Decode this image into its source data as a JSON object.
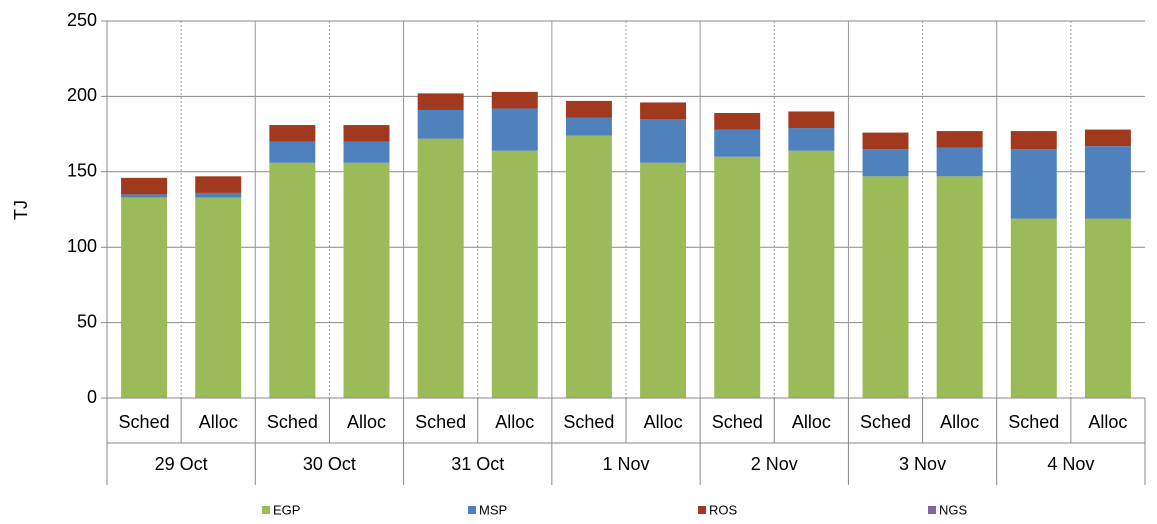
{
  "chart_data": {
    "type": "bar",
    "stacked": true,
    "ylabel": "TJ",
    "categories": [
      "Sched",
      "Alloc",
      "Sched",
      "Alloc",
      "Sched",
      "Alloc",
      "Sched",
      "Alloc",
      "Sched",
      "Alloc",
      "Sched",
      "Alloc",
      "Sched",
      "Alloc"
    ],
    "groups": [
      "29 Oct",
      "30 Oct",
      "31 Oct",
      "1 Nov",
      "2 Nov",
      "3 Nov",
      "4 Nov"
    ],
    "series": [
      {
        "name": "EGP",
        "color": "#9bbb59",
        "values": [
          133,
          133,
          156,
          156,
          172,
          164,
          174,
          156,
          160,
          164,
          147,
          147,
          119,
          119
        ]
      },
      {
        "name": "MSP",
        "color": "#4f81bd",
        "values": [
          2,
          3,
          14,
          14,
          19,
          28,
          12,
          29,
          18,
          15,
          18,
          19,
          46,
          48
        ]
      },
      {
        "name": "ROS",
        "color": "#a0391e",
        "values": [
          11,
          11,
          11,
          11,
          11,
          11,
          11,
          11,
          11,
          11,
          11,
          11,
          12,
          11
        ]
      },
      {
        "name": "NGS",
        "color": "#8064a2",
        "values": [
          0,
          0,
          0,
          0,
          0,
          0,
          0,
          0,
          0,
          0,
          0,
          0,
          0,
          0
        ]
      }
    ],
    "ylim": [
      0,
      250
    ],
    "yticks": [
      0,
      50,
      100,
      150,
      200,
      250
    ],
    "legend": "bottom"
  }
}
